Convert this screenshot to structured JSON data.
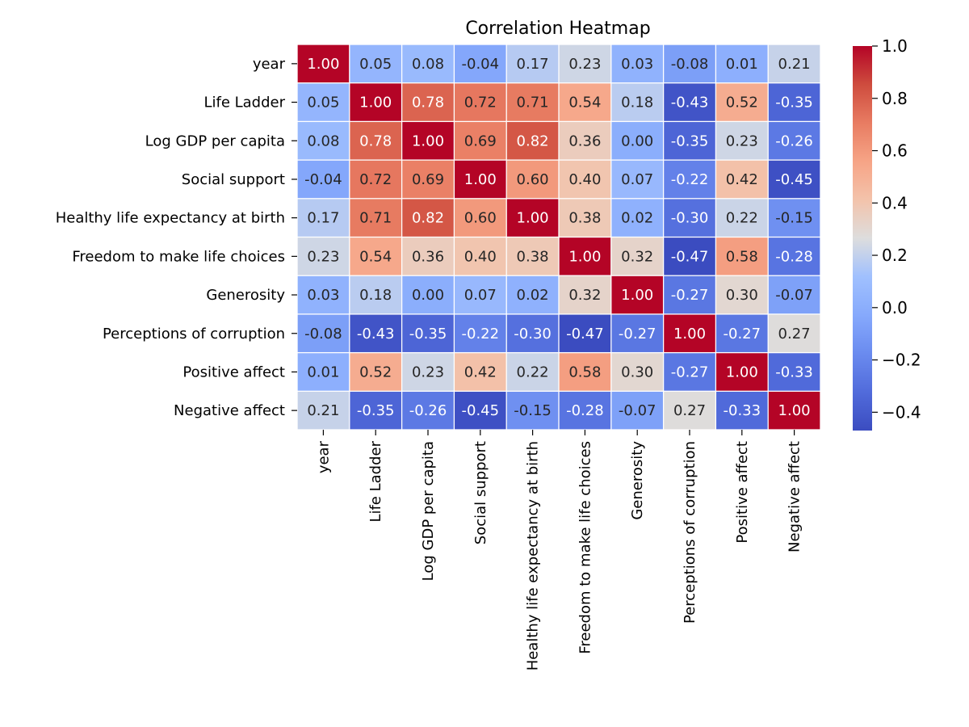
{
  "chart_data": {
    "type": "heatmap",
    "title": "Correlation Heatmap",
    "xlabel": "",
    "ylabel": "",
    "labels": [
      "year",
      "Life Ladder",
      "Log GDP per capita",
      "Social support",
      "Healthy life expectancy at birth",
      "Freedom to make life choices",
      "Generosity",
      "Perceptions of corruption",
      "Positive affect",
      "Negative affect"
    ],
    "values": [
      [
        1.0,
        0.05,
        0.08,
        -0.04,
        0.17,
        0.23,
        0.03,
        -0.08,
        0.01,
        0.21
      ],
      [
        0.05,
        1.0,
        0.78,
        0.72,
        0.71,
        0.54,
        0.18,
        -0.43,
        0.52,
        -0.35
      ],
      [
        0.08,
        0.78,
        1.0,
        0.69,
        0.82,
        0.36,
        -0.0,
        -0.35,
        0.23,
        -0.26
      ],
      [
        -0.04,
        0.72,
        0.69,
        1.0,
        0.6,
        0.4,
        0.07,
        -0.22,
        0.42,
        -0.45
      ],
      [
        0.17,
        0.71,
        0.82,
        0.6,
        1.0,
        0.38,
        0.02,
        -0.3,
        0.22,
        -0.15
      ],
      [
        0.23,
        0.54,
        0.36,
        0.4,
        0.38,
        1.0,
        0.32,
        -0.47,
        0.58,
        -0.28
      ],
      [
        0.03,
        0.18,
        -0.0,
        0.07,
        0.02,
        0.32,
        1.0,
        -0.27,
        0.3,
        -0.07
      ],
      [
        -0.08,
        -0.43,
        -0.35,
        -0.22,
        -0.3,
        -0.47,
        -0.27,
        1.0,
        -0.27,
        0.27
      ],
      [
        0.01,
        0.52,
        0.23,
        0.42,
        0.22,
        0.58,
        0.3,
        -0.27,
        1.0,
        -0.33
      ],
      [
        0.21,
        -0.35,
        -0.26,
        -0.45,
        -0.15,
        -0.28,
        -0.07,
        0.27,
        -0.33,
        1.0
      ]
    ],
    "colormap": "coolwarm",
    "vmin": -0.47,
    "vmax": 1.0,
    "colorbar_ticks": [
      1.0,
      0.8,
      0.6,
      0.4,
      0.2,
      0.0,
      -0.2,
      -0.4
    ],
    "colorbar_tick_labels": [
      "1.0",
      "0.8",
      "0.6",
      "0.4",
      "0.2",
      "0.0",
      "−0.2",
      "−0.4"
    ],
    "legend": "colorbar-right",
    "grid": false
  }
}
